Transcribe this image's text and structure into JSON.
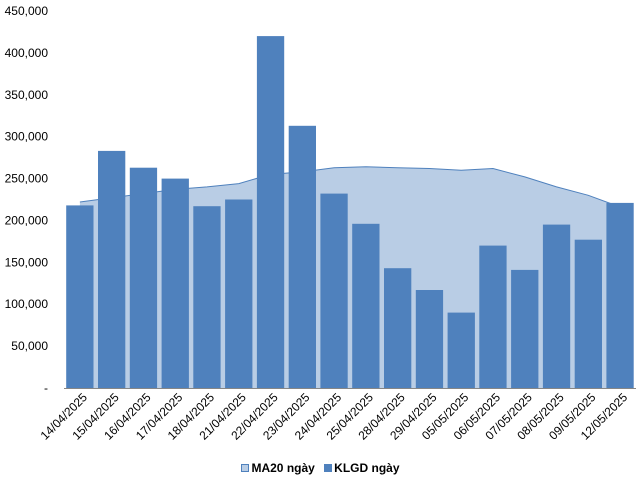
{
  "chart_data": {
    "type": "bar",
    "title": "",
    "xlabel": "",
    "ylabel": "",
    "ylim": [
      0,
      450000
    ],
    "y_ticks": [
      "-",
      "50,000",
      "100,000",
      "150,000",
      "200,000",
      "250,000",
      "300,000",
      "350,000",
      "400,000",
      "450,000"
    ],
    "grid": false,
    "legend_position": "bottom",
    "categories": [
      "14/04/2025",
      "15/04/2025",
      "16/04/2025",
      "17/04/2025",
      "18/04/2025",
      "21/04/2025",
      "22/04/2025",
      "23/04/2025",
      "24/04/2025",
      "25/04/2025",
      "28/04/2025",
      "29/04/2025",
      "05/05/2025",
      "06/05/2025",
      "07/05/2025",
      "08/05/2025",
      "09/05/2025",
      "12/05/2025"
    ],
    "series": [
      {
        "name": "MA20 ngày",
        "type": "area",
        "color": "#b9cde5",
        "line_color": "#4f81bd",
        "values": [
          222000,
          227000,
          232000,
          237000,
          240000,
          244000,
          255000,
          258000,
          263000,
          264000,
          263000,
          262000,
          260000,
          262000,
          252000,
          240000,
          230000,
          216000
        ]
      },
      {
        "name": "KLGD ngày",
        "type": "bar",
        "color": "#4f81bd",
        "values": [
          218000,
          283000,
          263000,
          250000,
          217000,
          225000,
          420000,
          313000,
          232000,
          196000,
          143000,
          117000,
          90000,
          170000,
          141000,
          195000,
          177000,
          221000
        ]
      }
    ]
  }
}
